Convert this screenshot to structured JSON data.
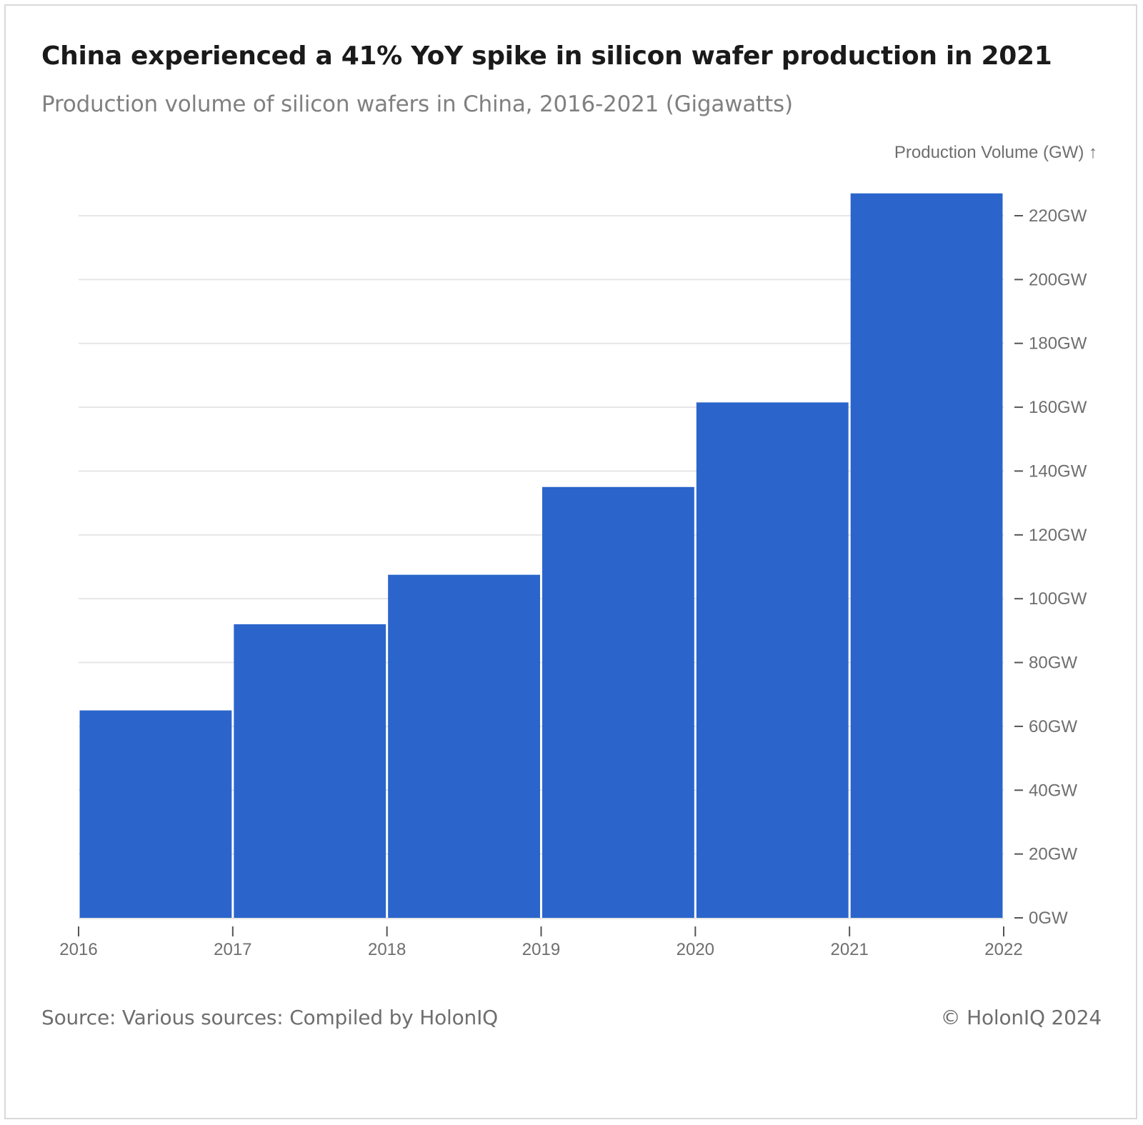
{
  "header": {
    "title": "China experienced a 41% YoY spike in silicon wafer production in 2021",
    "subtitle": "Production volume of silicon wafers in China, 2016-2021 (Gigawatts)"
  },
  "footer": {
    "source": "Source: Various sources: Compiled by HolonIQ",
    "copyright": "© HolonIQ 2024"
  },
  "colors": {
    "bar": "#2b65cc",
    "grid": "#e6e6e6",
    "axis": "#555555"
  },
  "chart_data": {
    "type": "bar",
    "title": "China experienced a 41% YoY spike in silicon wafer production in 2021",
    "subtitle": "Production volume of silicon wafers in China, 2016-2021 (Gigawatts)",
    "ylabel": "Production Volume (GW) ↑",
    "xlabel": "",
    "bins": [
      {
        "start": 2016,
        "end": 2017,
        "value": 65
      },
      {
        "start": 2017,
        "end": 2018,
        "value": 92
      },
      {
        "start": 2018,
        "end": 2019,
        "value": 107.5
      },
      {
        "start": 2019,
        "end": 2020,
        "value": 135
      },
      {
        "start": 2020,
        "end": 2021,
        "value": 161.5
      },
      {
        "start": 2021,
        "end": 2022,
        "value": 227
      }
    ],
    "x_ticks": [
      "2016",
      "2017",
      "2018",
      "2019",
      "2020",
      "2021",
      "2022"
    ],
    "xlim": [
      2016,
      2022
    ],
    "y_ticks": [
      {
        "value": 0,
        "label": "0GW"
      },
      {
        "value": 20,
        "label": "20GW"
      },
      {
        "value": 40,
        "label": "40GW"
      },
      {
        "value": 60,
        "label": "60GW"
      },
      {
        "value": 80,
        "label": "80GW"
      },
      {
        "value": 100,
        "label": "100GW"
      },
      {
        "value": 120,
        "label": "120GW"
      },
      {
        "value": 140,
        "label": "140GW"
      },
      {
        "value": 160,
        "label": "160GW"
      },
      {
        "value": 180,
        "label": "180GW"
      },
      {
        "value": 200,
        "label": "200GW"
      },
      {
        "value": 220,
        "label": "220GW"
      }
    ],
    "ylim": [
      0,
      227
    ],
    "y_axis_side": "right",
    "grid": true,
    "legend": "none"
  }
}
